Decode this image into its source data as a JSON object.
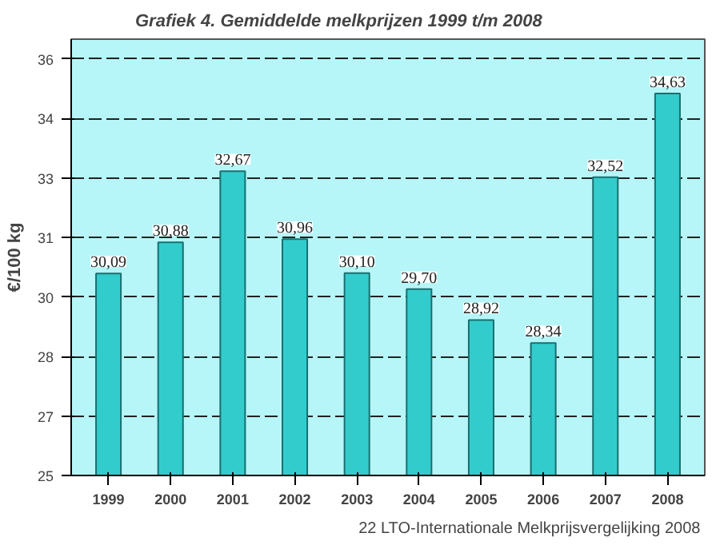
{
  "chart_data": {
    "type": "bar",
    "title": "Grafiek 4.  Gemiddelde melkprijzen 1999 t/m 2008",
    "ylabel": "€/100 kg",
    "categories": [
      "1999",
      "2000",
      "2001",
      "2002",
      "2003",
      "2004",
      "2005",
      "2006",
      "2007",
      "2008"
    ],
    "values": [
      30.09,
      30.88,
      32.67,
      30.96,
      30.1,
      29.7,
      28.92,
      28.34,
      32.52,
      34.63
    ],
    "value_labels": [
      "30,09",
      "30,88",
      "32,67",
      "30,96",
      "30,10",
      "29,70",
      "28,92",
      "28,34",
      "32,52",
      "34,63"
    ],
    "color": "#33cccc",
    "ylim": [
      25,
      36
    ],
    "yticks": [
      25,
      {
        "value": 26.5,
        "label": "27"
      },
      28,
      {
        "value": 29.5,
        "label": "30"
      },
      31,
      {
        "value": 32.5,
        "label": "33"
      },
      34,
      {
        "value": 35.5,
        "label": "36"
      }
    ],
    "grid": "y",
    "line_style": "dashed",
    "annotations": [
      "22  LTO-Internationale Melkprijsvergelijking 2008"
    ]
  }
}
